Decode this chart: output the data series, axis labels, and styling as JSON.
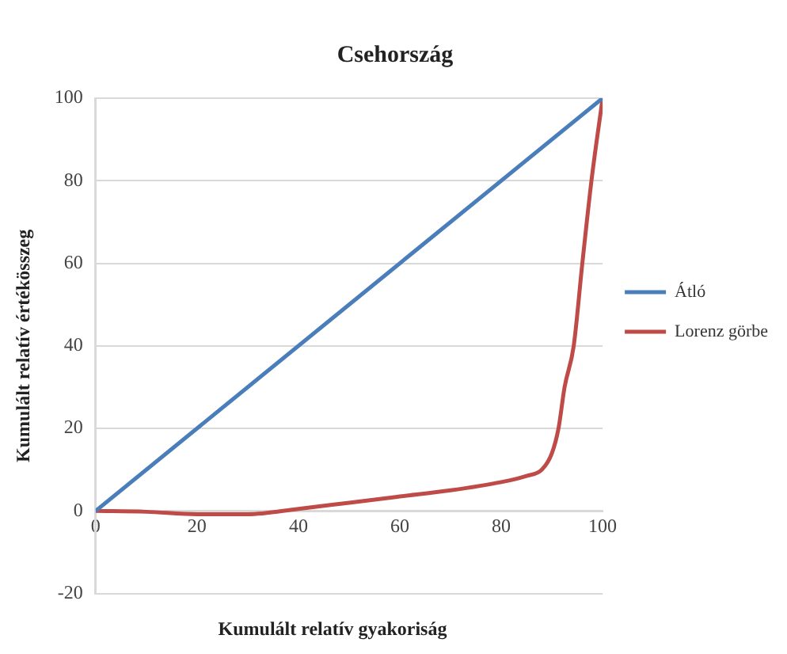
{
  "chart_data": {
    "type": "line",
    "title": "Csehország",
    "xlabel": "Kumulált relatív gyakoriság",
    "ylabel": "Kumulált relatív értékösszeg",
    "xlim": [
      0,
      100
    ],
    "xticks": [
      0,
      20,
      40,
      60,
      80,
      100
    ],
    "ylim": [
      -20,
      100
    ],
    "yticks": [
      -20,
      0,
      20,
      40,
      60,
      80,
      100
    ],
    "grid": "y",
    "legend": "right",
    "marker": "none",
    "line_style": "solid",
    "series": [
      {
        "name": "Átló",
        "color": "#4a7ebb",
        "x": [
          0,
          100
        ],
        "values": [
          0,
          100
        ]
      },
      {
        "name": "Lorenz görbe",
        "color": "#be4b48",
        "x": [
          0,
          10,
          20,
          30,
          40,
          50,
          60,
          70,
          80,
          85,
          88,
          90,
          91.3,
          92.5,
          94.3,
          96,
          97.8,
          100
        ],
        "values": [
          0,
          -0.2,
          -0.8,
          -0.8,
          0.5,
          2,
          3.5,
          5,
          7,
          8.5,
          10,
          14,
          20,
          30,
          40,
          60,
          80,
          100
        ]
      }
    ]
  }
}
